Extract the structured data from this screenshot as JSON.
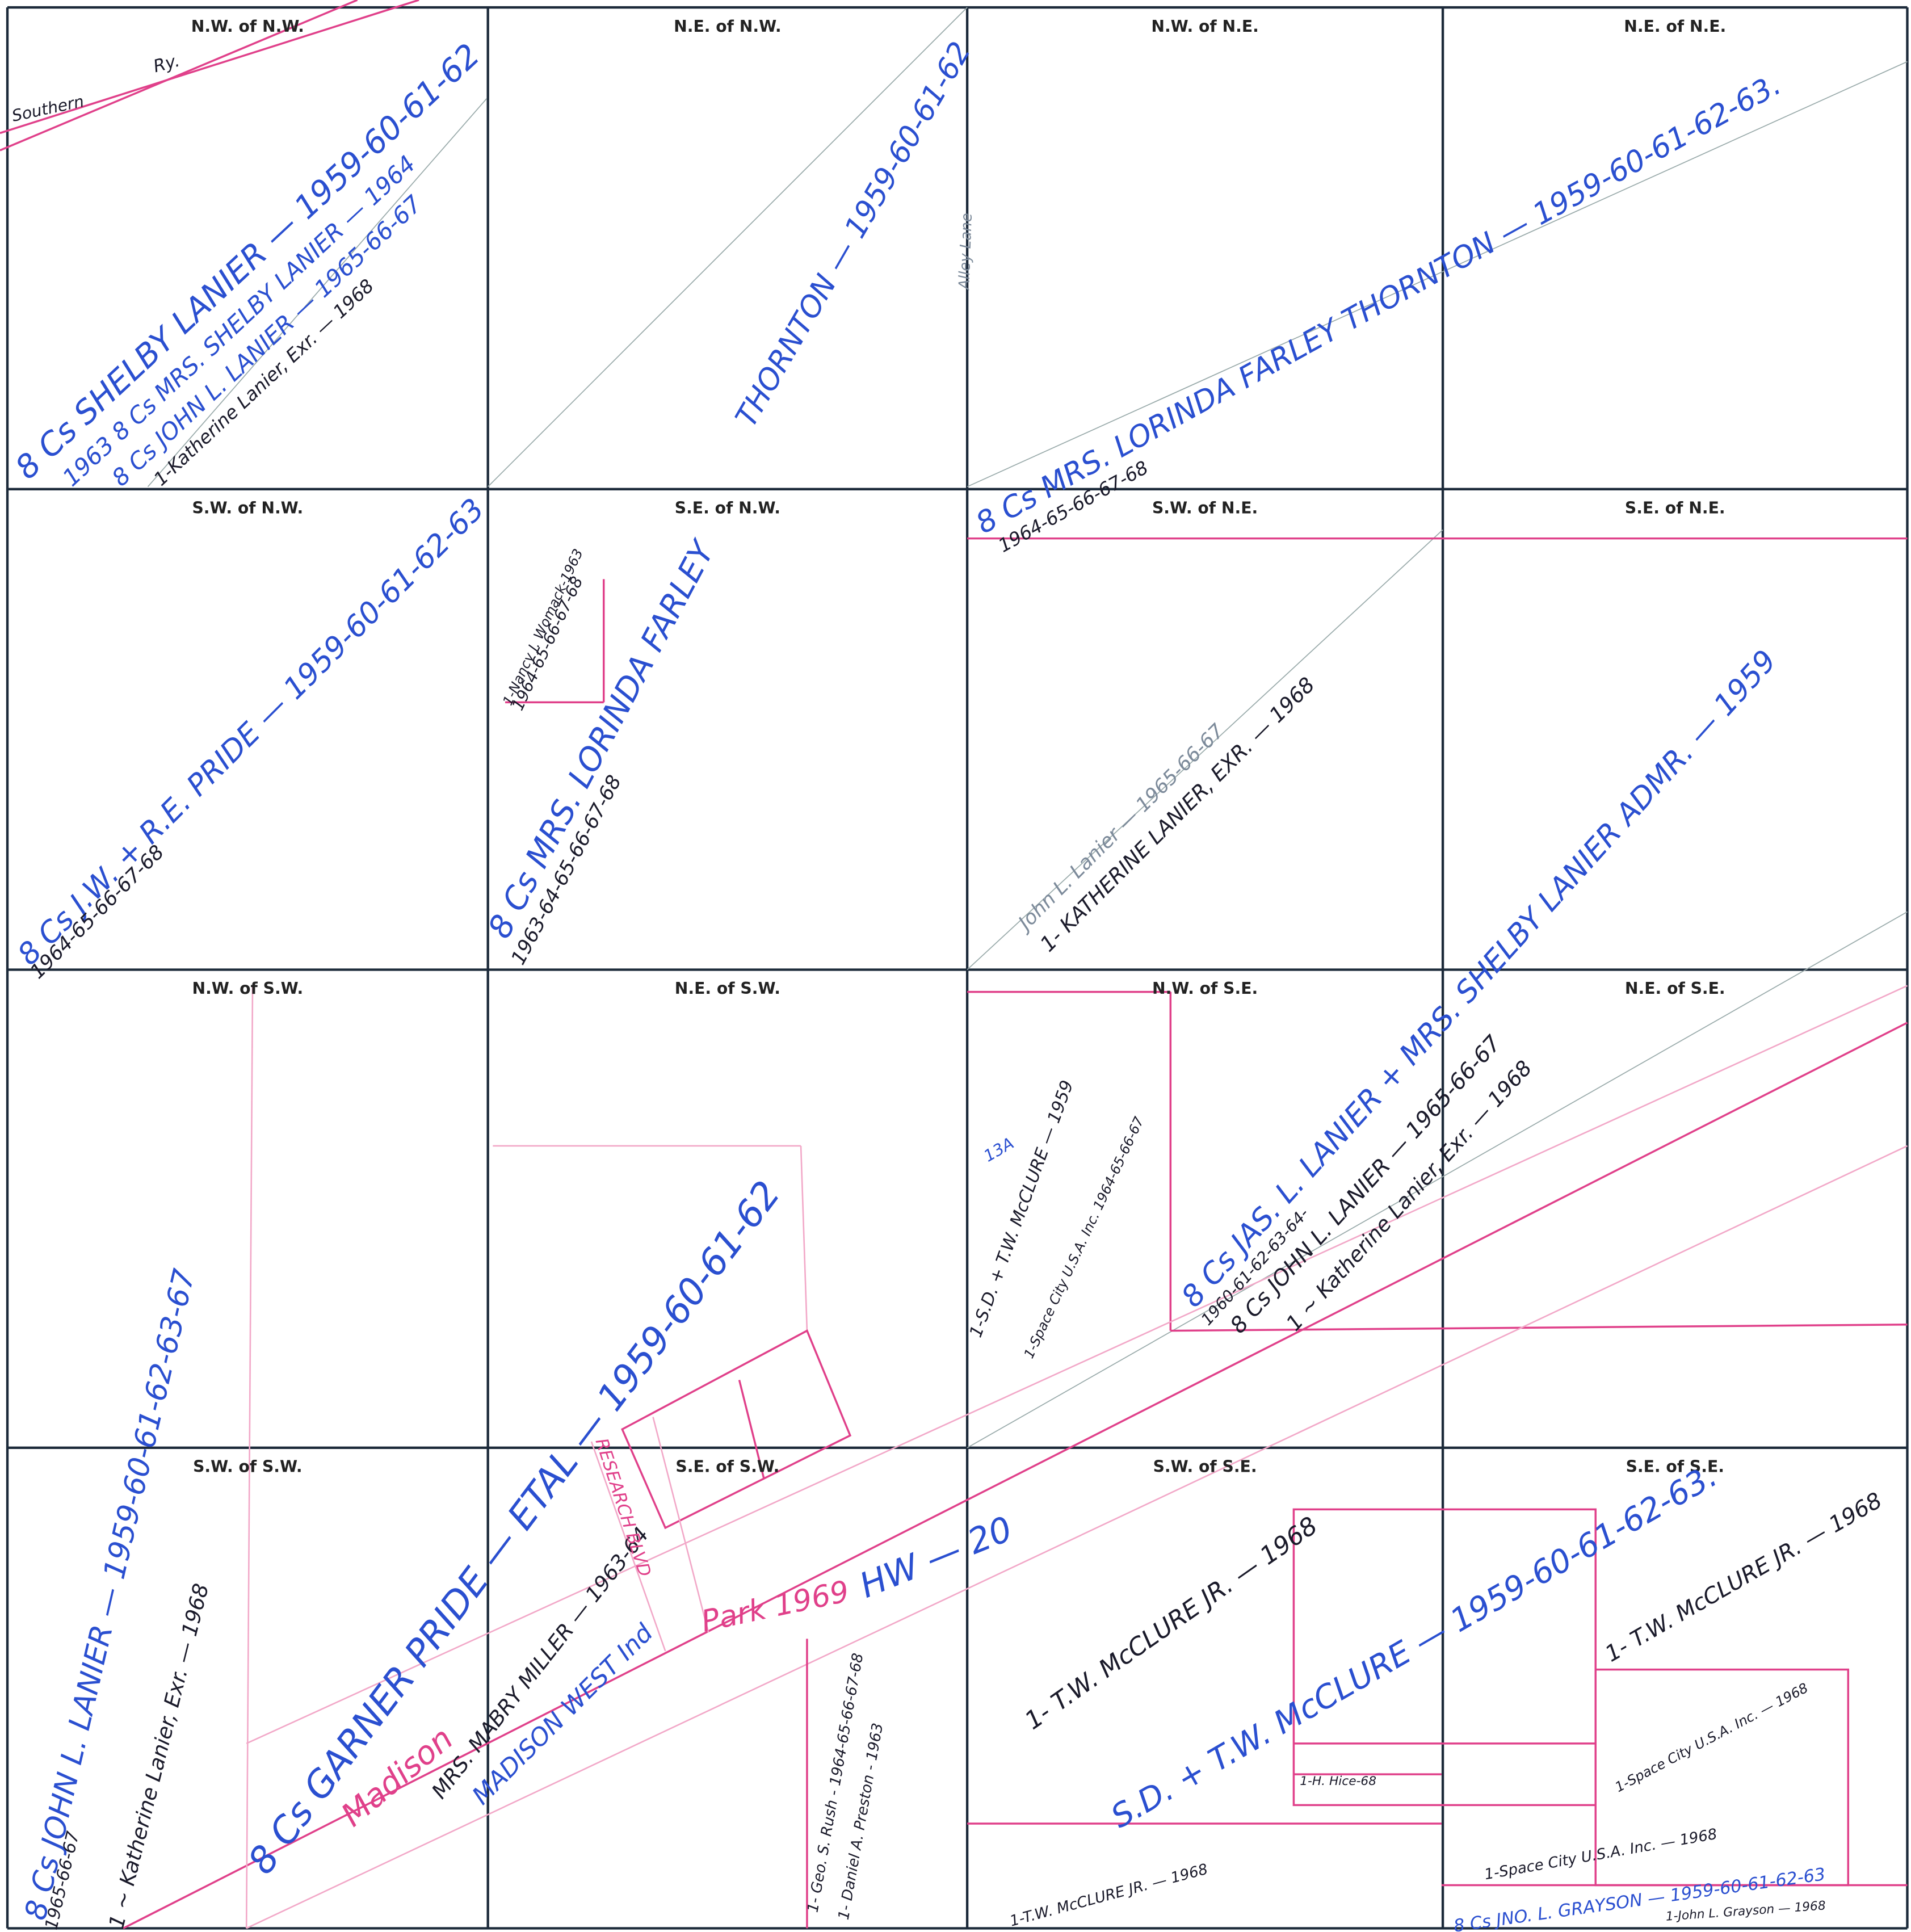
{
  "sections": [
    "N.W. of N.W.",
    "N.E. of N.W.",
    "N.W. of N.E.",
    "N.E. of N.E.",
    "S.W. of N.W.",
    "S.E. of N.W.",
    "S.W. of N.E.",
    "S.E. of N.E.",
    "N.W. of S.W.",
    "N.E. of S.W.",
    "N.W. of S.E.",
    "N.E. of S.E.",
    "S.W. of S.W.",
    "S.E. of S.W.",
    "S.W. of S.E.",
    "S.E. of S.E."
  ],
  "annotations": [
    "Southern",
    "Ry.",
    "8 Cs SHELBY LANIER — 1959-60-61-62",
    "1963 8 Cs MRS. SHELBY LANIER — 1964",
    "8 Cs JOHN L. LANIER — 1965-66-67",
    "1-Katherine Lanier, Exr. — 1968",
    "THORNTON — 1959-60-61-62",
    "Alley Lane",
    "8 Cs MRS. LORINDA FARLEY THORNTON — 1959-60-61-62-63.",
    "1964-65-66-67-68",
    "8 Cs J.W. + R.E. PRIDE — 1959-60-61-62-63",
    "1964-65-66-67-68",
    "1-Nancy J. Womack-1963",
    "1964-65-66-67-68",
    "8 Cs MRS. LORINDA FARLEY",
    "1963-64-65-66-67-68",
    "John L. Lanier — 1965-66-67",
    "1- KATHERINE LANIER, EXR. — 1968",
    "8 Cs JAS. L. LANIER + MRS. SHELBY LANIER ADMR. — 1959",
    "1960-61-62-63-64-",
    "8 Cs JOHN L. LANIER — 1965-66-67",
    "1 ~ Katherine Lanier, Exr. — 1968",
    "8 Cs JOHN L. LANIER — 1959-60-61-62-63-67",
    "1965-66-67",
    "1 ~ Katherine Lanier, Exr. — 1968",
    "8 Cs GARNER PRIDE — ETAL — 1959-60-61-62",
    "Madison",
    "MRS. MABRY MILLER — 1963-64",
    "MADISON WEST Ind",
    "Park 1969",
    "RESEARCH BLVD",
    "HW — 20",
    "1- Geo. S. Rush - 1964-65-66-67-68",
    "1- Daniel A. Preston - 1963",
    "1- T.W. McCLURE JR. — 1968",
    "1-S.D. + T.W. McCLURE — 1959",
    "13A",
    "1-Space City U.S.A. Inc. 1964-65-66-67",
    "S.D. + T.W. McCLURE — 1959-60-61-62-63.",
    "1- T.W. McCLURE JR. — 1968",
    "1-Space City U.S.A. Inc. — 1968",
    "1-H. Hice-68",
    "1-T.W. McCLURE JR. — 1968",
    "1-Space City U.S.A. Inc. — 1968",
    "8 Cs JNO. L. GRAYSON — 1959-60-61-62-63",
    "1-John L. Grayson — 1968"
  ]
}
